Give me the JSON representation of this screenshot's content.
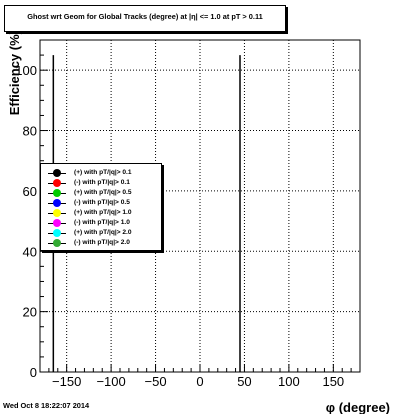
{
  "chart_data": {
    "type": "scatter",
    "title": "Ghost wrt Geom for Global Tracks (degree) at |η| <= 1.0 at pT > 0.11",
    "xlabel": "φ (degree)",
    "ylabel": "Efficiency (%)",
    "xlim": [
      -180,
      180
    ],
    "ylim": [
      0,
      110
    ],
    "xticks": [
      -150,
      -100,
      -50,
      0,
      50,
      100,
      150
    ],
    "xtick_labels": [
      "−150",
      "−100",
      "−50",
      "0",
      "50",
      "100",
      "150"
    ],
    "yticks": [
      0,
      20,
      40,
      60,
      80,
      100
    ],
    "ytick_labels": [
      "0",
      "20",
      "40",
      "60",
      "80",
      "100"
    ],
    "grid": true,
    "legend_position": "left",
    "vertical_lines": [
      -165,
      45
    ],
    "series": [
      {
        "name": "(+) with pT/|q|> 0.1",
        "color": "#000000",
        "values": []
      },
      {
        "name": "(-) with pT/|q|> 0.1",
        "color": "#ff0000",
        "values": []
      },
      {
        "name": "(+) with pT/|q|> 0.5",
        "color": "#00cc00",
        "values": []
      },
      {
        "name": "(-) with pT/|q|> 0.5",
        "color": "#0000ff",
        "values": []
      },
      {
        "name": "(+) with pT/|q|> 1.0",
        "color": "#ffff00",
        "values": []
      },
      {
        "name": "(-) with pT/|q|> 1.0",
        "color": "#ff00ff",
        "values": []
      },
      {
        "name": "(+) with pT/|q|> 2.0",
        "color": "#00ffff",
        "values": []
      },
      {
        "name": "(-) with pT/|q|> 2.0",
        "color": "#33aa33",
        "values": []
      }
    ]
  },
  "footer": {
    "timestamp": "Wed Oct  8 18:22:07 2014"
  }
}
